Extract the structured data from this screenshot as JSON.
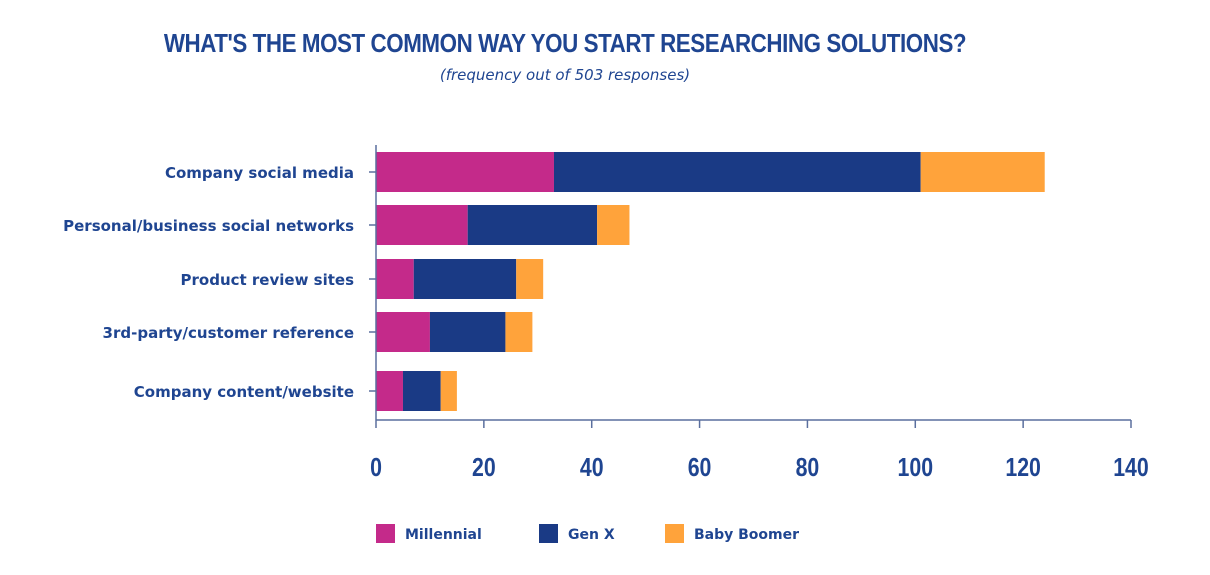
{
  "chart_data": {
    "type": "bar",
    "orientation": "horizontal",
    "stacked": true,
    "title": "WHAT'S THE MOST COMMON WAY YOU START RESEARCHING SOLUTIONS?",
    "subtitle": "(frequency out of 503 responses)",
    "categories": [
      "Company social media",
      "Personal/business social networks",
      "Product review sites",
      "3rd-party/customer reference",
      "Company content/website"
    ],
    "series": [
      {
        "name": "Millennial",
        "color": "#c42a8a",
        "values": [
          33,
          17,
          7,
          10,
          5
        ]
      },
      {
        "name": "Gen X",
        "color": "#1a3a85",
        "values": [
          68,
          24,
          19,
          14,
          7
        ]
      },
      {
        "name": "Baby Boomer",
        "color": "#ffa33b",
        "values": [
          23,
          6,
          5,
          5,
          3
        ]
      }
    ],
    "xlim": [
      0,
      140
    ],
    "xticks": [
      0,
      20,
      40,
      60,
      80,
      100,
      120,
      140
    ],
    "xtick_labels": [
      "0",
      "20",
      "40",
      "60",
      "80",
      "100",
      "120",
      "140"
    ],
    "xlabel": "",
    "ylabel": "",
    "grid": false,
    "legend_position": "bottom"
  }
}
